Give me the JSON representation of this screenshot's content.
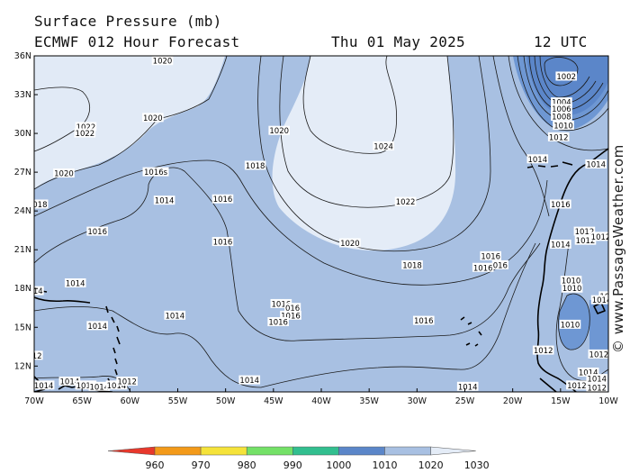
{
  "header": {
    "title": "Surface Pressure (mb)",
    "model": "ECMWF 012 Hour Forecast",
    "date": "Thu 01 May 2025",
    "time": "12 UTC"
  },
  "credit": "© www.PassageWeather.com",
  "map": {
    "lat_ticks": [
      "36N",
      "33N",
      "30N",
      "27N",
      "24N",
      "21N",
      "18N",
      "15N",
      "12N"
    ],
    "lon_ticks": [
      "70W",
      "65W",
      "60W",
      "55W",
      "50W",
      "45W",
      "40W",
      "35W",
      "30W",
      "25W",
      "20W",
      "15W",
      "10W"
    ],
    "colors": {
      "1000": "#5b86c9",
      "1010": "#6e97d3",
      "1020": "#a8c0e2",
      "1030": "#e4ecf7",
      "coast": "#000000",
      "isobar": "#1a1a1a"
    },
    "isobar_labels": [
      {
        "text": "1020",
        "lon": -56.6,
        "lat": 35.6
      },
      {
        "text": "1020",
        "lon": -57.6,
        "lat": 31.2
      },
      {
        "text": "1022",
        "lon": -64.6,
        "lat": 30.5
      },
      {
        "text": "1022",
        "lon": -64.7,
        "lat": 30.0
      },
      {
        "text": "1020",
        "lon": -44.4,
        "lat": 30.2
      },
      {
        "text": "1024",
        "lon": -33.5,
        "lat": 29.0
      },
      {
        "text": "1020",
        "lon": -66.9,
        "lat": 26.9
      },
      {
        "text": "1016s",
        "lon": -57.3,
        "lat": 27.0
      },
      {
        "text": "1018",
        "lon": -46.9,
        "lat": 27.5
      },
      {
        "text": "1022",
        "lon": -31.2,
        "lat": 24.7
      },
      {
        "text": "018",
        "lon": -69.4,
        "lat": 24.5
      },
      {
        "text": "1014",
        "lon": -56.4,
        "lat": 24.8
      },
      {
        "text": "1016",
        "lon": -50.3,
        "lat": 24.9
      },
      {
        "text": "1016",
        "lon": -63.4,
        "lat": 22.4
      },
      {
        "text": "1016",
        "lon": -50.3,
        "lat": 21.6
      },
      {
        "text": "1020",
        "lon": -37.0,
        "lat": 21.5
      },
      {
        "text": "1018",
        "lon": -30.5,
        "lat": 19.8
      },
      {
        "text": "1016",
        "lon": -22.3,
        "lat": 20.5
      },
      {
        "text": "1016",
        "lon": -23.1,
        "lat": 19.6
      },
      {
        "text": "016",
        "lon": -21.3,
        "lat": 19.8
      },
      {
        "text": "1014",
        "lon": -65.7,
        "lat": 18.4
      },
      {
        "text": "14",
        "lon": -69.6,
        "lat": 17.8
      },
      {
        "text": "1016",
        "lon": -44.2,
        "lat": 16.8
      },
      {
        "text": "016",
        "lon": -43.0,
        "lat": 16.5
      },
      {
        "text": "1016",
        "lon": -43.2,
        "lat": 15.9
      },
      {
        "text": "1016",
        "lon": -44.5,
        "lat": 15.4
      },
      {
        "text": "1014",
        "lon": -55.3,
        "lat": 15.9
      },
      {
        "text": "1016",
        "lon": -29.3,
        "lat": 15.5
      },
      {
        "text": "1014",
        "lon": -63.4,
        "lat": 15.1
      },
      {
        "text": "12",
        "lon": -69.7,
        "lat": 12.8
      },
      {
        "text": "1014",
        "lon": -47.5,
        "lat": 10.9
      },
      {
        "text": "1014",
        "lon": -66.3,
        "lat": 10.8
      },
      {
        "text": "1014",
        "lon": -64.6,
        "lat": 10.5
      },
      {
        "text": "1014",
        "lon": -63.2,
        "lat": 10.4
      },
      {
        "text": "1014",
        "lon": -61.4,
        "lat": 10.5
      },
      {
        "text": "1012",
        "lon": -60.3,
        "lat": 10.8
      },
      {
        "text": "1014",
        "lon": -69.0,
        "lat": 10.5
      },
      {
        "text": "1014",
        "lon": -24.7,
        "lat": 10.4
      },
      {
        "text": "1002",
        "lon": -14.4,
        "lat": 34.4
      },
      {
        "text": "1004",
        "lon": -14.9,
        "lat": 32.4
      },
      {
        "text": "1006",
        "lon": -14.9,
        "lat": 31.9
      },
      {
        "text": "1008",
        "lon": -14.9,
        "lat": 31.3
      },
      {
        "text": "1010",
        "lon": -14.7,
        "lat": 30.6
      },
      {
        "text": "1012",
        "lon": -15.2,
        "lat": 29.7
      },
      {
        "text": "1014",
        "lon": -17.4,
        "lat": 28.0
      },
      {
        "text": "1014",
        "lon": -11.3,
        "lat": 27.6
      },
      {
        "text": "1016",
        "lon": -15.0,
        "lat": 24.5
      },
      {
        "text": "1012",
        "lon": -12.5,
        "lat": 22.4
      },
      {
        "text": "1012",
        "lon": -12.4,
        "lat": 21.7
      },
      {
        "text": "1012",
        "lon": -10.8,
        "lat": 22.0
      },
      {
        "text": "1014",
        "lon": -15.0,
        "lat": 21.4
      },
      {
        "text": "1010",
        "lon": -13.9,
        "lat": 18.6
      },
      {
        "text": "1010",
        "lon": -13.8,
        "lat": 18.0
      },
      {
        "text": "10",
        "lon": -10.4,
        "lat": 17.4
      },
      {
        "text": "1014",
        "lon": -10.7,
        "lat": 17.1
      },
      {
        "text": "1010",
        "lon": -14.0,
        "lat": 15.2
      },
      {
        "text": "1012",
        "lon": -16.8,
        "lat": 13.2
      },
      {
        "text": "1012",
        "lon": -11.0,
        "lat": 12.9
      },
      {
        "text": "1014",
        "lon": -12.1,
        "lat": 11.5
      },
      {
        "text": "1014",
        "lon": -11.2,
        "lat": 11.0
      },
      {
        "text": "1012",
        "lon": -13.3,
        "lat": 10.5
      },
      {
        "text": "1012",
        "lon": -11.2,
        "lat": 10.3
      }
    ]
  },
  "colorbar": {
    "colors": [
      "#e8382c",
      "#f39a1a",
      "#f5e33a",
      "#74e167",
      "#32bf8f",
      "#5b86c9",
      "#a8c0e2",
      "#e4ecf7"
    ],
    "labels": [
      "960",
      "970",
      "980",
      "990",
      "1000",
      "1010",
      "1020",
      "1030"
    ]
  }
}
